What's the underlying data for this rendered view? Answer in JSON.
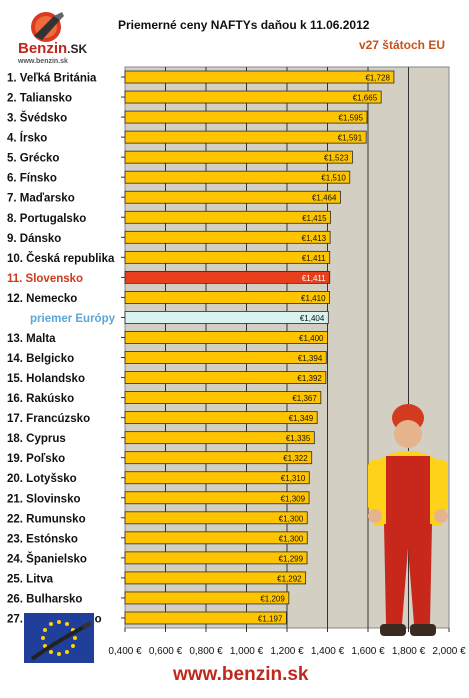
{
  "header": {
    "logo_name": "Benzin",
    "logo_suffix": ".SK",
    "logo_url": "www.benzin.sk",
    "title": "Priemerné ceny NAFTYs daňou k 11.06.2012",
    "subtitle": "v27 štátoch EU"
  },
  "footer": {
    "url": "www.benzin.sk"
  },
  "colors": {
    "bar": "#ffc400",
    "highlight": "#e8401c",
    "average": "#d8f3f0",
    "plot_bg": "#d3d0c3",
    "highlight_label": "#d0391c",
    "average_label": "#5aa7d9"
  },
  "chart_data": {
    "type": "bar",
    "orientation": "horizontal",
    "title": "Priemerné ceny NAFTYs daňou k 11.06.2012",
    "subtitle": "v27 štátoch EU",
    "categories": [
      "1. Veľká Británia",
      "2. Taliansko",
      "3. Švédsko",
      "4. Írsko",
      "5. Grécko",
      "6. Fínsko",
      "7. Maďarsko",
      "8. Portugalsko",
      "9. Dánsko",
      "10. Česká republika",
      "11. Slovensko",
      "12. Nemecko",
      "priemer Európy",
      "13. Malta",
      "14. Belgicko",
      "15. Holandsko",
      "16. Rakúsko",
      "17. Francúzsko",
      "18. Cyprus",
      "19. Poľsko",
      "20. Lotyšsko",
      "21. Slovinsko",
      "22. Rumunsko",
      "23. Estónsko",
      "24. Španielsko",
      "25. Litva",
      "26. Bulharsko",
      "27. Luxembursko"
    ],
    "values": [
      1.728,
      1.665,
      1.595,
      1.591,
      1.523,
      1.51,
      1.464,
      1.415,
      1.413,
      1.411,
      1.411,
      1.41,
      1.404,
      1.4,
      1.394,
      1.392,
      1.367,
      1.349,
      1.335,
      1.322,
      1.31,
      1.309,
      1.3,
      1.3,
      1.299,
      1.292,
      1.209,
      1.197
    ],
    "value_labels": [
      "€1,728",
      "€1,665",
      "€1,595",
      "€1,591",
      "€1,523",
      "€1,510",
      "€1,464",
      "€1,415",
      "€1,413",
      "€1,411",
      "€1,411",
      "€1,410",
      "€1,404",
      "€1,400",
      "€1,394",
      "€1,392",
      "€1,367",
      "€1,349",
      "€1,335",
      "€1,322",
      "€1,310",
      "€1,309",
      "€1,300",
      "€1,300",
      "€1,299",
      "€1,292",
      "€1,209",
      "€1,197"
    ],
    "highlight": "11. Slovensko",
    "average": "priemer Európy",
    "xlim": [
      0.4,
      2.0
    ],
    "xticks": [
      0.4,
      0.6,
      0.8,
      1.0,
      1.2,
      1.4,
      1.6,
      1.8,
      2.0
    ],
    "xtick_labels": [
      "0,400 €",
      "0,600 €",
      "0,800 €",
      "1,000 €",
      "1,200 €",
      "1,400 €",
      "1,600 €",
      "1,800 €",
      "2,000 €"
    ],
    "grid": true
  }
}
